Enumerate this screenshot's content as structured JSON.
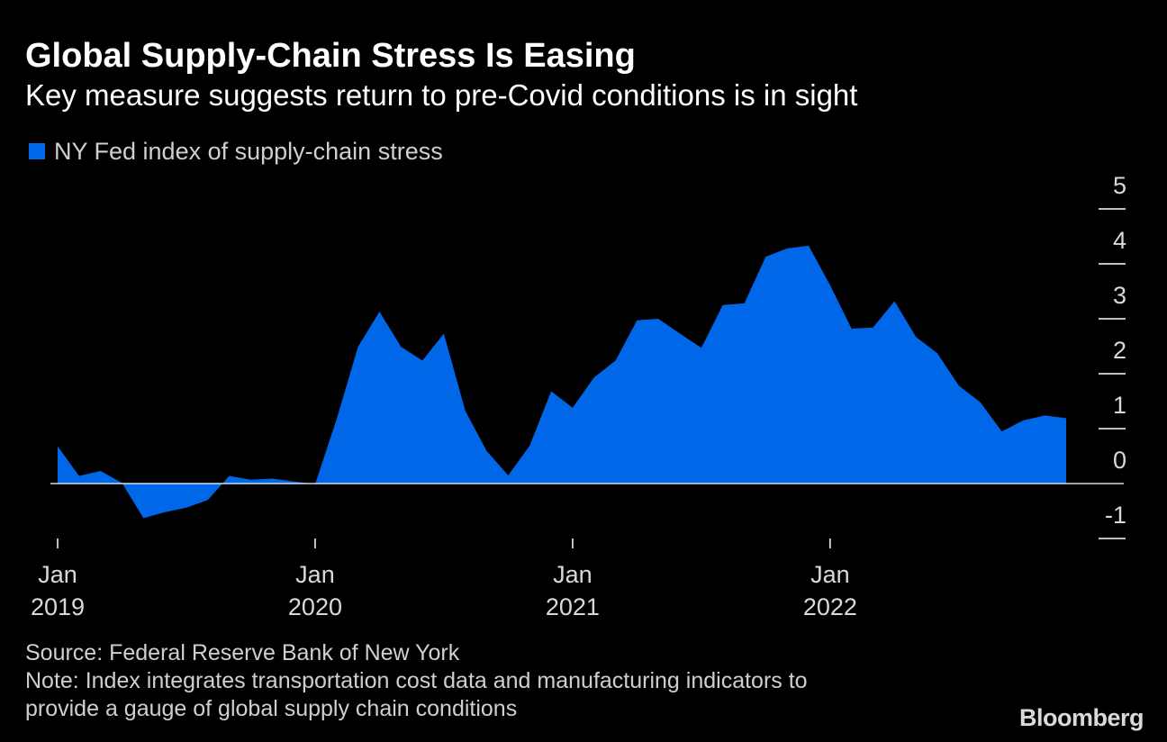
{
  "colors": {
    "background": "#000000",
    "series": "#0068e8",
    "text": "#ffffff",
    "muted": "#cfcfcf"
  },
  "legend": {
    "label": "NY Fed index of supply-chain stress"
  },
  "footer": {
    "source": "Source: Federal Reserve Bank of New York",
    "note_line1": "Note: Index integrates transportation cost data and manufacturing indicators to",
    "note_line2": "provide a gauge of global supply chain conditions"
  },
  "brand": {
    "name": "Bloomberg"
  },
  "chart_data": {
    "type": "area",
    "title": "Global Supply-Chain Stress Is Easing",
    "subtitle": "Key measure suggests return to pre-Covid conditions is in sight",
    "xlabel": "",
    "ylabel": "",
    "ylim": [
      -1,
      5
    ],
    "yticks": [
      -1,
      0,
      1,
      2,
      3,
      4,
      5
    ],
    "ytick_labels": [
      "-1",
      "0",
      "1",
      "2",
      "3",
      "4",
      "5"
    ],
    "grid": false,
    "legend_position": "top-left",
    "x_ticks": [
      {
        "index": 0,
        "month": "Jan",
        "year": "2019"
      },
      {
        "index": 12,
        "month": "Jan",
        "year": "2020"
      },
      {
        "index": 24,
        "month": "Jan",
        "year": "2021"
      },
      {
        "index": 36,
        "month": "Jan",
        "year": "2022"
      }
    ],
    "series": [
      {
        "name": "NY Fed index of supply-chain stress",
        "start": "2019-01",
        "frequency": "monthly",
        "values": [
          0.68,
          0.14,
          0.23,
          0.01,
          -0.63,
          -0.52,
          -0.44,
          -0.3,
          0.14,
          0.07,
          0.09,
          0.04,
          -0.01,
          1.17,
          2.49,
          3.13,
          2.49,
          2.24,
          2.73,
          1.32,
          0.59,
          0.15,
          0.69,
          1.68,
          1.38,
          1.93,
          2.24,
          2.97,
          3.0,
          2.73,
          2.47,
          3.25,
          3.28,
          4.13,
          4.28,
          4.33,
          3.61,
          2.82,
          2.84,
          3.32,
          2.67,
          2.37,
          1.78,
          1.48,
          0.95,
          1.15,
          1.24,
          1.19
        ]
      }
    ]
  }
}
